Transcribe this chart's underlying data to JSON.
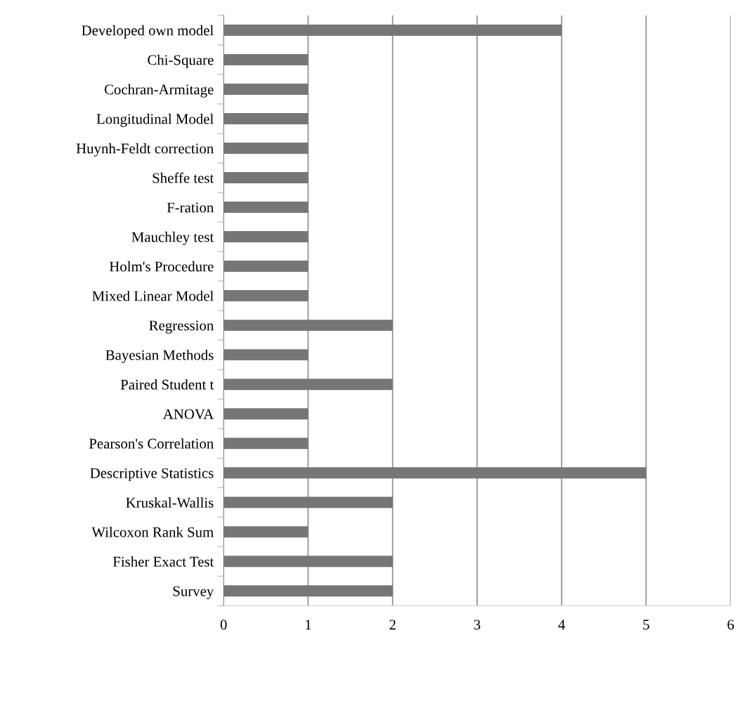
{
  "chart_data": {
    "type": "bar",
    "orientation": "horizontal",
    "categories": [
      "Developed own model",
      "Chi-Square",
      "Cochran-Armitage",
      "Longitudinal Model",
      "Huynh-Feldt correction",
      "Sheffe test",
      "F-ration",
      "Mauchley test",
      "Holm's Procedure",
      "Mixed Linear Model",
      "Regression",
      "Bayesian Methods",
      "Paired Student t",
      "ANOVA",
      "Pearson's Correlation",
      "Descriptive Statistics",
      "Kruskal-Wallis",
      "Wilcoxon Rank Sum",
      "Fisher Exact Test",
      "Survey"
    ],
    "values": [
      4,
      1,
      1,
      1,
      1,
      1,
      1,
      1,
      1,
      1,
      2,
      1,
      2,
      1,
      1,
      5,
      2,
      1,
      2,
      2
    ],
    "color": "#767676",
    "xlim": [
      0,
      6
    ],
    "xticks": [
      0,
      1,
      2,
      3,
      4,
      5,
      6
    ],
    "grid": "x",
    "legend": false
  }
}
